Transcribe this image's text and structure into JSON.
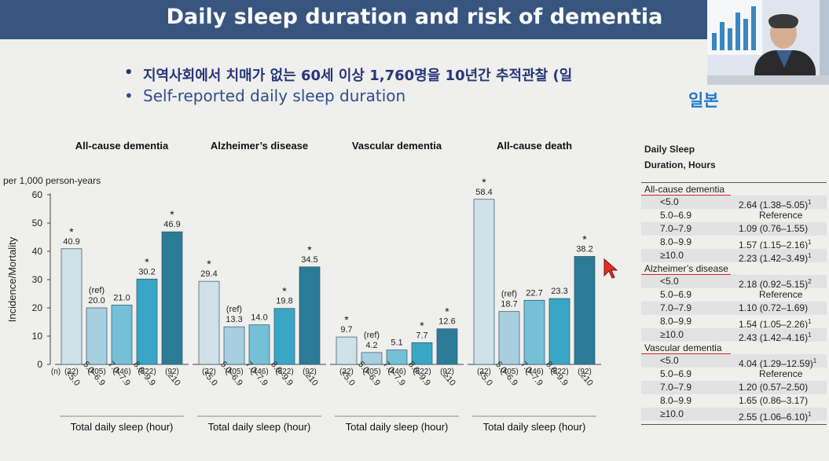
{
  "slide": {
    "title": "Daily sleep duration and risk of dementia",
    "bullets": [
      "지역사회에서 치매가 없는 60세 이상 1,760명을 10년간 추적관찰 (일",
      "Self-reported daily sleep duration"
    ],
    "country_label": "일본"
  },
  "chart_data": {
    "type": "bar",
    "ylabel": "Incidence/Mortality",
    "unit_label": "per 1,000 person-years",
    "ylim": [
      0,
      60
    ],
    "yticks": [
      0,
      10,
      20,
      30,
      40,
      50,
      60
    ],
    "n_prefix": "(n)",
    "categories": [
      "<5.0",
      "5.0–6.9",
      "7.0–7.9",
      "8.0–9.9",
      "≥10"
    ],
    "n": [
      "(32)",
      "(405)",
      "(446)",
      "(522)",
      "(92)"
    ],
    "xlabel": "Total daily sleep (hour)",
    "ref_label": "(ref)",
    "star": "*",
    "colors": [
      "#cfe0e7",
      "#a8cfdf",
      "#76bfd8",
      "#3aa6c6",
      "#2b7b97"
    ],
    "panels": [
      {
        "title": "All-cause dementia",
        "values": [
          40.9,
          20.0,
          21.0,
          30.2,
          46.9
        ],
        "labels": [
          "40.9",
          "20.0",
          "21.0",
          "30.2",
          "46.9"
        ],
        "significant": [
          true,
          false,
          false,
          true,
          true
        ]
      },
      {
        "title": "Alzheimer’s disease",
        "values": [
          29.4,
          13.3,
          14.0,
          19.8,
          34.5
        ],
        "labels": [
          "29.4",
          "13.3",
          "14.0",
          "19.8",
          "34.5"
        ],
        "significant": [
          true,
          false,
          false,
          true,
          true
        ]
      },
      {
        "title": "Vascular dementia",
        "values": [
          9.7,
          4.2,
          5.1,
          7.7,
          12.6
        ],
        "labels": [
          "9.7",
          "4.2",
          "5.1",
          "7.7",
          "12.6"
        ],
        "significant": [
          true,
          false,
          false,
          true,
          true
        ]
      },
      {
        "title": "All-cause death",
        "values": [
          58.4,
          18.7,
          22.7,
          23.3,
          38.2
        ],
        "labels": [
          "58.4",
          "18.7",
          "22.7",
          "23.3",
          "38.2"
        ],
        "significant": [
          true,
          false,
          false,
          false,
          true
        ]
      }
    ]
  },
  "table": {
    "header_line1": "Daily Sleep",
    "header_line2": "Duration, Hours",
    "sections": [
      {
        "title": "All-cause dementia",
        "rows": [
          {
            "group": "<5.0",
            "value": "2.64 (1.38–5.05)",
            "sup": "1"
          },
          {
            "group": "5.0–6.9",
            "value": "Reference",
            "sup": ""
          },
          {
            "group": "7.0–7.9",
            "value": "1.09 (0.76–1.55)",
            "sup": ""
          },
          {
            "group": "8.0–9.9",
            "value": "1.57 (1.15–2.16)",
            "sup": "1"
          },
          {
            "group": "≥10.0",
            "value": "2.23 (1.42–3.49)",
            "sup": "1"
          }
        ]
      },
      {
        "title": "Alzheimer’s disease",
        "rows": [
          {
            "group": "<5.0",
            "value": "2.18 (0.92–5.15)",
            "sup": "2"
          },
          {
            "group": "5.0–6.9",
            "value": "Reference",
            "sup": ""
          },
          {
            "group": "7.0–7.9",
            "value": "1.10 (0.72–1.69)",
            "sup": ""
          },
          {
            "group": "8.0–9.9",
            "value": "1.54 (1.05–2.26)",
            "sup": "1"
          },
          {
            "group": "≥10.0",
            "value": "2.43 (1.42–4.16)",
            "sup": "1"
          }
        ]
      },
      {
        "title": "Vascular dementia",
        "rows": [
          {
            "group": "<5.0",
            "value": "4.04 (1.29–12.59)",
            "sup": "1"
          },
          {
            "group": "5.0–6.9",
            "value": "Reference",
            "sup": ""
          },
          {
            "group": "7.0–7.9",
            "value": "1.20 (0.57–2.50)",
            "sup": ""
          },
          {
            "group": "8.0–9.9",
            "value": "1.65 (0.86–3.17)",
            "sup": ""
          },
          {
            "group": "≥10.0",
            "value": "2.55 (1.06–6.10)",
            "sup": "1"
          }
        ]
      }
    ]
  }
}
